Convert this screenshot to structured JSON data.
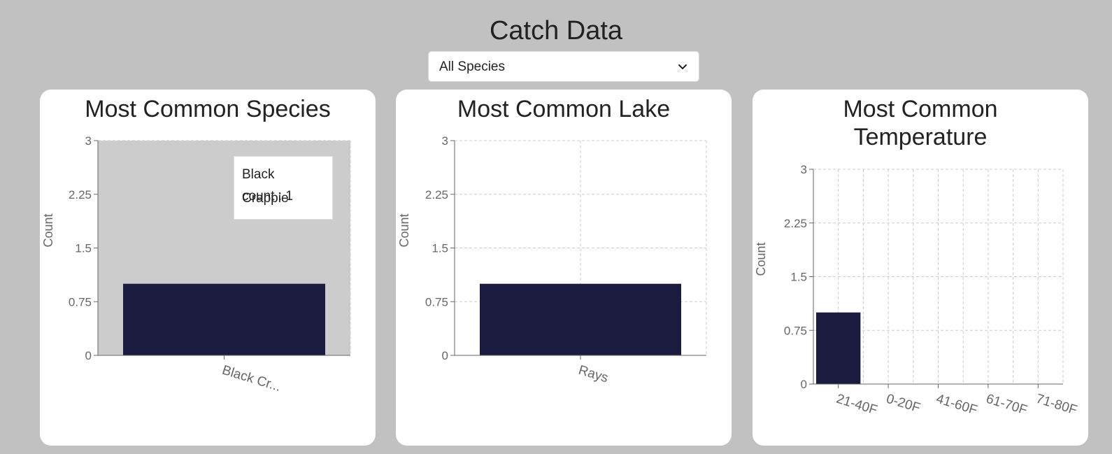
{
  "page": {
    "title": "Catch Data",
    "filter": {
      "selected": "All Species",
      "icon": "chevron-down-icon"
    }
  },
  "colors": {
    "background": "#c1c1c1",
    "bar": "#1b1b40",
    "hover_background": "#cccccc",
    "grid": "#cccccc",
    "axis": "#666666"
  },
  "chart_data": [
    {
      "type": "bar",
      "title": "Most Common Species",
      "categories": [
        "Black Cr..."
      ],
      "values": [
        1
      ],
      "xlabel": "",
      "ylabel": "Count",
      "ylim": [
        0,
        3
      ],
      "yticks": [
        "0",
        "0.75",
        "1.5",
        "2.25",
        "3"
      ],
      "grid": false,
      "tooltip": {
        "name": "Black Crappie",
        "value_text": "count : 1"
      }
    },
    {
      "type": "bar",
      "title": "Most Common Lake",
      "categories": [
        "Rays"
      ],
      "values": [
        1
      ],
      "xlabel": "",
      "ylabel": "Count",
      "ylim": [
        0,
        3
      ],
      "yticks": [
        "0",
        "0.75",
        "1.5",
        "2.25",
        "3"
      ],
      "grid": true
    },
    {
      "type": "bar",
      "title": "Most Common Temperature",
      "title_lines": [
        "Most Common",
        "Temperature"
      ],
      "categories": [
        "21-40F",
        "0-20F",
        "41-60F",
        "61-70F",
        "71-80F"
      ],
      "values": [
        1,
        0,
        0,
        0,
        0
      ],
      "xlabel": "",
      "ylabel": "Count",
      "ylim": [
        0,
        3
      ],
      "yticks": [
        "0",
        "0.75",
        "1.5",
        "2.25",
        "3"
      ],
      "grid": true
    }
  ]
}
